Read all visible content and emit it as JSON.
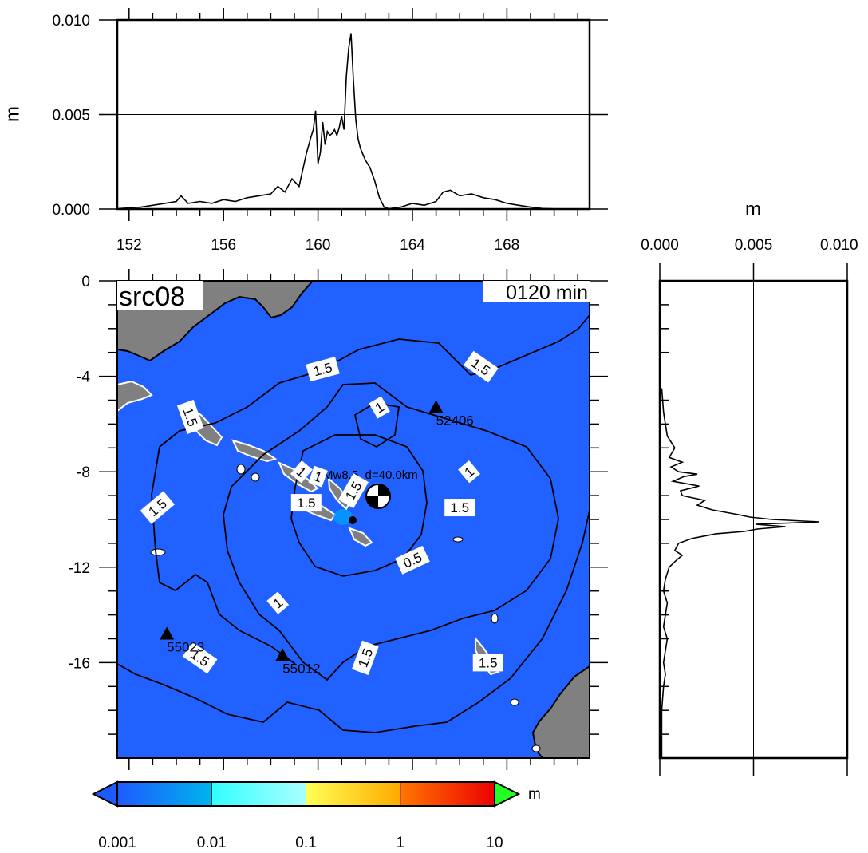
{
  "chart_data": [
    {
      "type": "line",
      "name_role": "top-marginal-profile",
      "ylabel": "m",
      "xlim": [
        151.5,
        171.5
      ],
      "ylim": [
        0,
        0.01
      ],
      "x_ticks": [
        152,
        156,
        160,
        164,
        168
      ],
      "y_ticks": [
        "0.000",
        "0.005",
        "0.010"
      ],
      "grid_y": [
        0.005
      ],
      "x": [
        151.5,
        152.5,
        153.0,
        153.5,
        154.0,
        154.2,
        154.5,
        155.0,
        155.5,
        156.0,
        156.5,
        157.0,
        157.5,
        158.0,
        158.3,
        158.6,
        158.9,
        159.2,
        159.5,
        159.7,
        159.8,
        159.9,
        160.0,
        160.1,
        160.2,
        160.3,
        160.4,
        160.5,
        160.6,
        160.7,
        160.8,
        160.9,
        161.0,
        161.1,
        161.2,
        161.3,
        161.4,
        161.5,
        161.6,
        161.7,
        161.8,
        162.0,
        162.2,
        162.4,
        162.6,
        162.8,
        163.0,
        163.5,
        164.0,
        164.5,
        165.0,
        165.3,
        165.6,
        166.0,
        166.5,
        167.0,
        167.5,
        168.0,
        168.5,
        169.0,
        169.5,
        170.0,
        171.0
      ],
      "y": [
        2e-05,
        0.0001,
        0.0002,
        0.0003,
        0.0004,
        0.0007,
        0.0003,
        0.0004,
        0.0003,
        0.0005,
        0.0004,
        0.0006,
        0.0007,
        0.0008,
        0.0012,
        0.0009,
        0.0016,
        0.0012,
        0.0029,
        0.0038,
        0.0042,
        0.0052,
        0.0024,
        0.003,
        0.0046,
        0.0034,
        0.0041,
        0.0039,
        0.004,
        0.0042,
        0.0039,
        0.0043,
        0.0049,
        0.0042,
        0.007,
        0.0085,
        0.0093,
        0.0068,
        0.0047,
        0.0037,
        0.0032,
        0.0026,
        0.0022,
        0.0015,
        0.0006,
        0.0001,
        2e-05,
        0.0001,
        0.0003,
        0.0002,
        0.0004,
        0.0009,
        0.001,
        0.0007,
        0.0008,
        0.0006,
        0.0005,
        0.0003,
        0.0002,
        0.0001,
        3e-05,
        1e-05,
        0.0
      ]
    },
    {
      "type": "line",
      "name_role": "right-marginal-profile",
      "xlabel": "m",
      "xlim": [
        0,
        0.01
      ],
      "ylim": [
        0,
        -20
      ],
      "x_ticks": [
        "0.000",
        "0.005",
        "0.010"
      ],
      "grid_x": [
        0.005
      ],
      "y": [
        -4.5,
        -5.5,
        -6.0,
        -6.5,
        -7.0,
        -7.4,
        -7.6,
        -7.8,
        -8.0,
        -8.1,
        -8.2,
        -8.4,
        -8.6,
        -8.8,
        -9.0,
        -9.2,
        -9.4,
        -9.6,
        -9.7,
        -9.8,
        -9.9,
        -10.0,
        -10.1,
        -10.2,
        -10.3,
        -10.4,
        -10.5,
        -10.6,
        -10.8,
        -11.0,
        -11.3,
        -11.5,
        -11.7,
        -12.0,
        -12.5,
        -13.0,
        -13.5,
        -14.0,
        -14.5,
        -15.0,
        -15.5,
        -16.0,
        -16.5,
        -17.0,
        -18.0,
        -19.0,
        -20.0
      ],
      "x": [
        0.0001,
        0.0002,
        0.0003,
        0.0004,
        0.0008,
        0.0005,
        0.0012,
        0.0006,
        0.001,
        0.002,
        0.0013,
        0.0007,
        0.0021,
        0.0011,
        0.0012,
        0.0024,
        0.002,
        0.0028,
        0.0035,
        0.0042,
        0.0048,
        0.006,
        0.0085,
        0.0051,
        0.0067,
        0.0052,
        0.0045,
        0.003,
        0.0017,
        0.001,
        0.0008,
        0.0012,
        0.0009,
        0.0005,
        0.0003,
        0.0002,
        0.0004,
        0.0003,
        0.0002,
        0.0004,
        0.0003,
        0.0002,
        0.0003,
        0.0002,
        0.0001,
        0.0001,
        0.0001
      ]
    },
    {
      "type": "heatmap",
      "name_role": "tsunami-max-amplitude-map",
      "xlim": [
        151.5,
        171.5
      ],
      "ylim": [
        -20,
        0
      ],
      "y_ticks": [
        "0",
        "-4",
        "-8",
        "-12",
        "-16"
      ],
      "title_left": "src08",
      "title_right": "0120 min",
      "epicenter_label": "Mw8.5, d=40.0km",
      "stations": [
        {
          "label": "52406",
          "lon": 165.0,
          "lat": -5.3
        },
        {
          "label": "55023",
          "lon": 153.6,
          "lat": -14.8
        },
        {
          "label": "55012",
          "lon": 158.5,
          "lat": -15.7
        }
      ],
      "contour_labels": [
        {
          "text": "1.5",
          "lon": 160.2,
          "lat": -3.7,
          "angle": -15
        },
        {
          "text": "1.5",
          "lon": 166.9,
          "lat": -3.6,
          "angle": 35
        },
        {
          "text": "1",
          "lon": 162.6,
          "lat": -5.3,
          "angle": -30
        },
        {
          "text": "1.5",
          "lon": 154.6,
          "lat": -5.7,
          "angle": 70
        },
        {
          "text": "1",
          "lon": 159.3,
          "lat": -8.0,
          "angle": 40
        },
        {
          "text": "1",
          "lon": 160.0,
          "lat": -8.2,
          "angle": 20
        },
        {
          "text": "1.5",
          "lon": 161.5,
          "lat": -8.8,
          "angle": -60
        },
        {
          "text": "1.5",
          "lon": 159.5,
          "lat": -9.3,
          "angle": 0
        },
        {
          "text": "1",
          "lon": 166.4,
          "lat": -8.0,
          "angle": -40
        },
        {
          "text": "1.5",
          "lon": 166.0,
          "lat": -9.5,
          "angle": 0
        },
        {
          "text": "1.5",
          "lon": 153.2,
          "lat": -9.5,
          "angle": -40
        },
        {
          "text": "0.5",
          "lon": 164.0,
          "lat": -11.7,
          "angle": -25
        },
        {
          "text": "1",
          "lon": 158.3,
          "lat": -13.5,
          "angle": -40
        },
        {
          "text": "1.5",
          "lon": 155.0,
          "lat": -15.8,
          "angle": 35
        },
        {
          "text": "1.5",
          "lon": 162.0,
          "lat": -15.8,
          "angle": -70
        },
        {
          "text": "1.5",
          "lon": 167.2,
          "lat": -16.0,
          "angle": 0
        }
      ],
      "colors": {
        "ocean": "#2161ff",
        "land": "#808080"
      }
    },
    {
      "type": "colorbar",
      "name_role": "amplitude-colorbar",
      "unit": "m",
      "tick_labels": [
        "0.001",
        "0.01",
        "0.1",
        "1",
        "10"
      ],
      "segments": [
        {
          "from": 0,
          "to": 1,
          "stops": [
            "#1e5bff",
            "#00b3ee"
          ]
        },
        {
          "from": 1,
          "to": 2,
          "stops": [
            "#33ffff",
            "#aaffff"
          ]
        },
        {
          "from": 2,
          "to": 3,
          "stops": [
            "#ffff55",
            "#ffaa00"
          ]
        },
        {
          "from": 3,
          "to": 4,
          "stops": [
            "#ff7700",
            "#ee0000"
          ]
        }
      ],
      "under_color": "#1e5bff",
      "over_color": "#22ff22"
    }
  ]
}
